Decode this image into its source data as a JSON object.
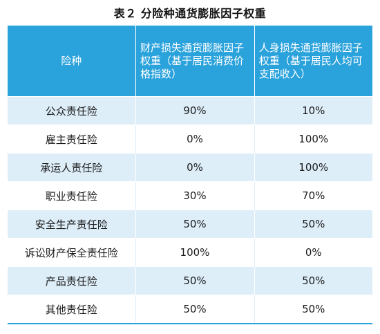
{
  "caption": "表２  分险种通货膨胀因子权重",
  "table": {
    "headers": [
      "险种",
      "财产损失通货膨胀因子权重（基于居民消费价格指数）",
      "人身损失通货膨胀因子权重（基于居民人均可支配收入）"
    ],
    "rows": [
      [
        "公众责任险",
        "90%",
        "10%"
      ],
      [
        "雇主责任险",
        "0%",
        "100%"
      ],
      [
        "承运人责任险",
        "0%",
        "100%"
      ],
      [
        "职业责任险",
        "30%",
        "70%"
      ],
      [
        "安全生产责任险",
        "50%",
        "50%"
      ],
      [
        "诉讼财产保全责任险",
        "100%",
        "0%"
      ],
      [
        "产品责任险",
        "50%",
        "50%"
      ],
      [
        "其他责任险",
        "50%",
        "50%"
      ]
    ]
  },
  "colors": {
    "header_bg": "#2aa2dc",
    "row_alt_bg": "#deeef9",
    "header_text": "#ffffff"
  }
}
